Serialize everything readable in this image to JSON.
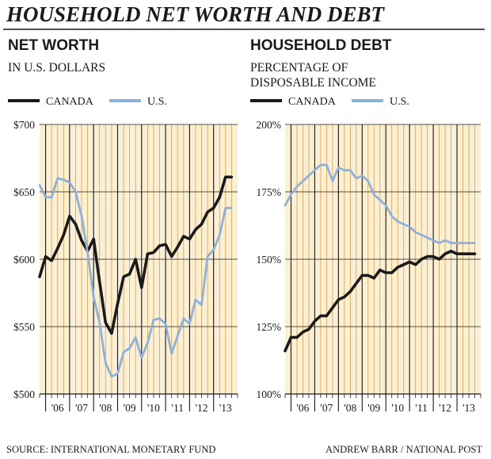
{
  "header": {
    "title": "HOUSEHOLD NET WORTH AND DEBT"
  },
  "footer": {
    "source": "SOURCE: INTERNATIONAL MONETARY FUND",
    "credit": "ANDREW BARR / NATIONAL POST"
  },
  "colors": {
    "canada": "#1a1a1a",
    "us": "#8fb0d8",
    "band": "#fbefd6",
    "gridline": "#d9a046"
  },
  "chart_data": [
    {
      "type": "line",
      "title": "NET WORTH",
      "subtitle": "IN U.S. DOLLARS",
      "ylim": [
        500,
        700
      ],
      "yticks": [
        500,
        550,
        600,
        650,
        700
      ],
      "ytick_labels": [
        "$500",
        "$550",
        "$600",
        "$650",
        "$700"
      ],
      "xlim": [
        2005.75,
        2014.0
      ],
      "xtick_labels": [
        "'06",
        "'07",
        "'08",
        "'09",
        "'10",
        "'11",
        "'12",
        "'13"
      ],
      "legend": [
        "CANADA",
        "U.S."
      ],
      "grid": true,
      "series": [
        {
          "name": "CANADA",
          "x": [
            2005.75,
            2006.0,
            2006.25,
            2006.5,
            2006.75,
            2007.0,
            2007.25,
            2007.5,
            2007.75,
            2008.0,
            2008.25,
            2008.5,
            2008.75,
            2009.0,
            2009.25,
            2009.5,
            2009.75,
            2010.0,
            2010.25,
            2010.5,
            2010.75,
            2011.0,
            2011.25,
            2011.5,
            2011.75,
            2012.0,
            2012.25,
            2012.5,
            2012.75,
            2013.0,
            2013.25,
            2013.5,
            2013.75
          ],
          "values": [
            587,
            602,
            599,
            608,
            618,
            632,
            626,
            614,
            606,
            615,
            583,
            553,
            545,
            567,
            587,
            589,
            600,
            579,
            604,
            605,
            610,
            611,
            602,
            609,
            617,
            615,
            622,
            626,
            635,
            638,
            646,
            661,
            661
          ]
        },
        {
          "name": "U.S.",
          "x": [
            2005.75,
            2006.0,
            2006.25,
            2006.5,
            2006.75,
            2007.0,
            2007.25,
            2007.5,
            2007.75,
            2008.0,
            2008.25,
            2008.5,
            2008.75,
            2009.0,
            2009.25,
            2009.5,
            2009.75,
            2010.0,
            2010.25,
            2010.5,
            2010.75,
            2011.0,
            2011.25,
            2011.5,
            2011.75,
            2012.0,
            2012.25,
            2012.5,
            2012.75,
            2013.0,
            2013.25,
            2013.5,
            2013.75
          ],
          "values": [
            655,
            646,
            646,
            660,
            659,
            657,
            650,
            632,
            605,
            572,
            553,
            523,
            513,
            515,
            531,
            534,
            542,
            527,
            538,
            555,
            556,
            552,
            530,
            543,
            556,
            552,
            570,
            566,
            602,
            607,
            618,
            638,
            638
          ]
        }
      ]
    },
    {
      "type": "line",
      "title": "HOUSEHOLD DEBT",
      "subtitle": "PERCENTAGE OF DISPOSABLE INCOME",
      "ylim": [
        100,
        200
      ],
      "yticks": [
        100,
        125,
        150,
        175,
        200
      ],
      "ytick_labels": [
        "100%",
        "125%",
        "150%",
        "175%",
        "200%"
      ],
      "xlim": [
        2005.75,
        2014.0
      ],
      "xtick_labels": [
        "'06",
        "'07",
        "'08",
        "'09",
        "'10",
        "'11",
        "'12",
        "'13"
      ],
      "legend": [
        "CANADA",
        "U.S."
      ],
      "grid": true,
      "series": [
        {
          "name": "CANADA",
          "x": [
            2005.75,
            2006.0,
            2006.25,
            2006.5,
            2006.75,
            2007.0,
            2007.25,
            2007.5,
            2007.75,
            2008.0,
            2008.25,
            2008.5,
            2008.75,
            2009.0,
            2009.25,
            2009.5,
            2009.75,
            2010.0,
            2010.25,
            2010.5,
            2010.75,
            2011.0,
            2011.25,
            2011.5,
            2011.75,
            2012.0,
            2012.25,
            2012.5,
            2012.75,
            2013.0,
            2013.25,
            2013.5,
            2013.75
          ],
          "values": [
            116,
            121,
            121,
            123,
            124,
            127,
            129,
            129,
            132,
            135,
            136,
            138,
            141,
            144,
            144,
            143,
            146,
            145,
            145,
            147,
            148,
            149,
            148,
            150,
            151,
            151,
            150,
            152,
            153,
            152,
            152,
            152,
            152
          ]
        },
        {
          "name": "U.S.",
          "x": [
            2005.75,
            2006.0,
            2006.25,
            2006.5,
            2006.75,
            2007.0,
            2007.25,
            2007.5,
            2007.75,
            2008.0,
            2008.25,
            2008.5,
            2008.75,
            2009.0,
            2009.25,
            2009.5,
            2009.75,
            2010.0,
            2010.25,
            2010.5,
            2010.75,
            2011.0,
            2011.25,
            2011.5,
            2011.75,
            2012.0,
            2012.25,
            2012.5,
            2012.75,
            2013.0,
            2013.25,
            2013.5,
            2013.75
          ],
          "values": [
            170,
            174,
            177,
            179,
            181,
            183,
            185,
            185,
            179,
            184,
            183,
            183,
            180,
            181,
            179,
            174,
            172,
            170,
            166,
            164,
            163,
            162,
            160,
            159,
            158,
            157,
            156,
            157,
            156,
            156,
            156,
            156,
            156
          ]
        }
      ]
    }
  ]
}
